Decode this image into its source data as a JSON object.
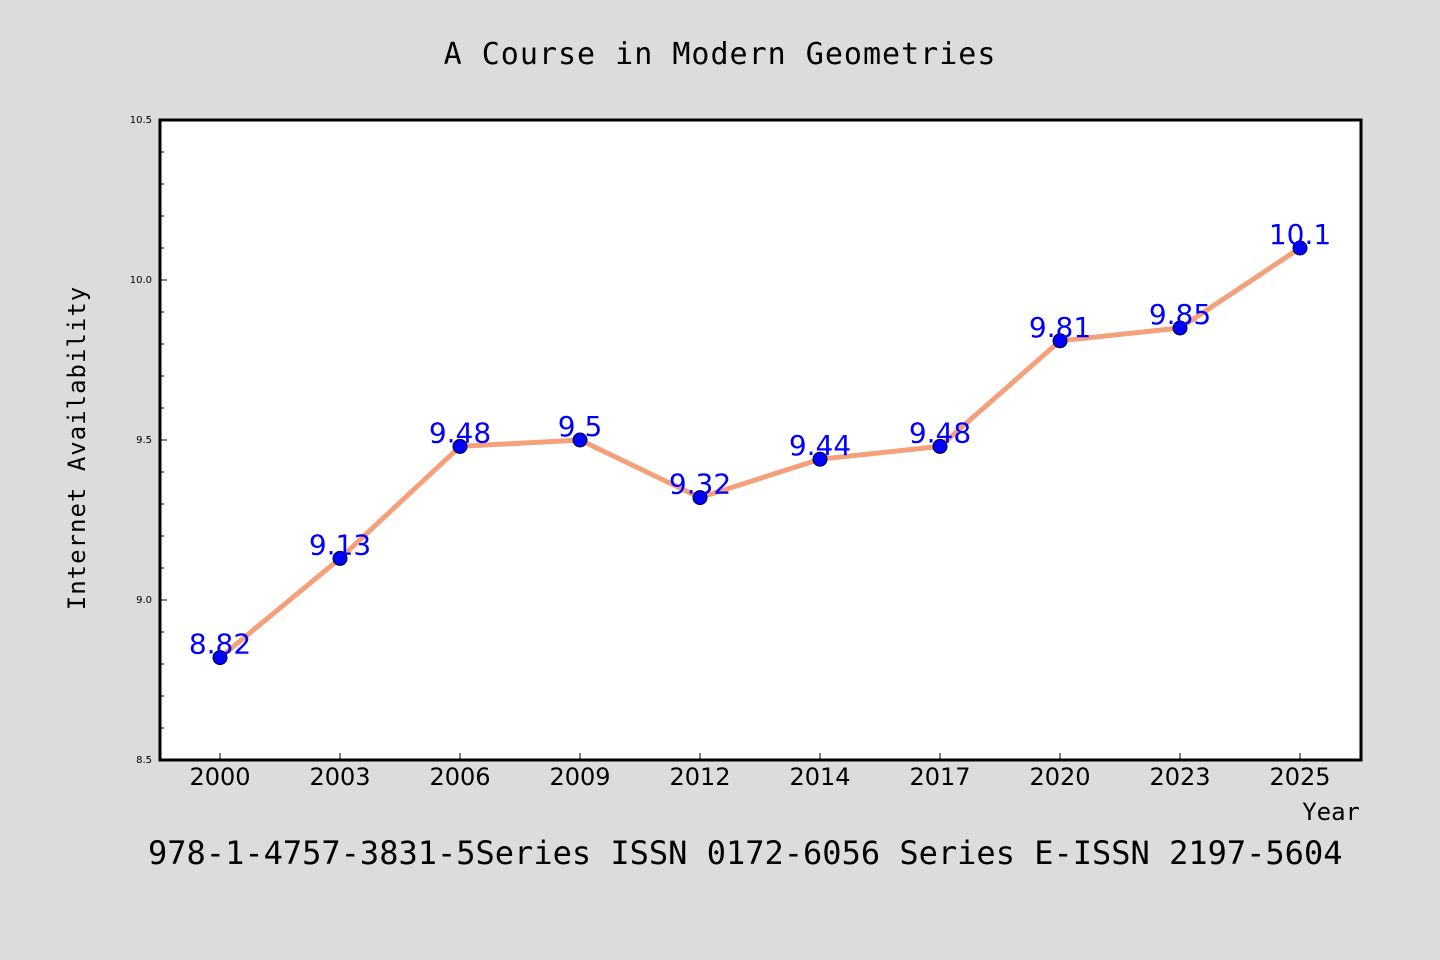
{
  "chart_data": {
    "type": "line",
    "title": "A Course in Modern Geometries",
    "xlabel": "Year",
    "ylabel": "Internet Availability",
    "categories": [
      "2000",
      "2003",
      "2006",
      "2009",
      "2012",
      "2014",
      "2017",
      "2020",
      "2023",
      "2025"
    ],
    "values": [
      8.82,
      9.13,
      9.48,
      9.5,
      9.32,
      9.44,
      9.48,
      9.81,
      9.85,
      10.1
    ],
    "data_labels": [
      "8.82",
      "9.13",
      "9.48",
      "9.5",
      "9.32",
      "9.44",
      "9.48",
      "9.81",
      "9.85",
      "10.1"
    ],
    "ylim": [
      8.5,
      10.5
    ],
    "yticks": [
      "8.5",
      "9.0",
      "9.5",
      "10.0",
      "10.5"
    ],
    "grid": false,
    "line_color": "#f4a07a",
    "marker_color": "#0000ff",
    "label_color": "#0000ff",
    "background_color": "#dcdcdc",
    "plot_background_color": "#ffffff"
  },
  "footer_text": "978-1-4757-3831-5Series ISSN 0172-6056 Series E-ISSN 2197-5604"
}
